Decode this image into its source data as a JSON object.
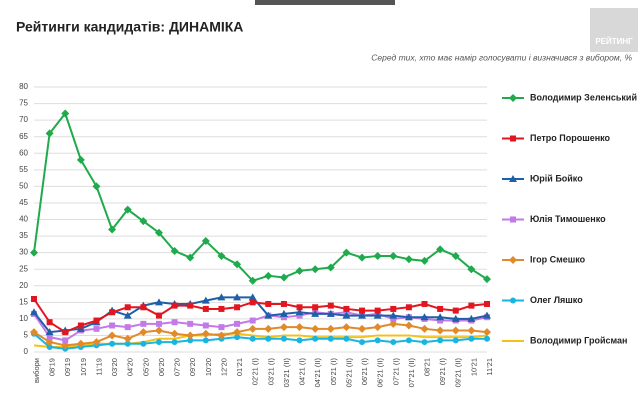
{
  "chart_data": {
    "type": "line",
    "title": "Рейтинги кандидатів: ДИНАМІКА",
    "subtitle": "Серед тих, хто має намір голосувати і визначився з вибором, %",
    "logo": "РЕЙТИНГ",
    "categories": [
      "вибори",
      "08'19",
      "09'19",
      "10'19",
      "11'19",
      "03'20",
      "04'20",
      "05'20",
      "06'20",
      "07'20",
      "09'20",
      "10'20",
      "12'20",
      "01'21",
      "02'21 (I)",
      "03'21 (I)",
      "03'21 (II)",
      "04'21 (I)",
      "04'21 (II)",
      "05'21 (I)",
      "05'21 (II)",
      "06'21 (I)",
      "06'21 (II)",
      "07'21 (I)",
      "07'21 (II)",
      "08'21",
      "09'21 (I)",
      "09'21 (II)",
      "10'21",
      "11'21"
    ],
    "ylim": [
      0,
      80
    ],
    "yticks": [
      0,
      5,
      10,
      15,
      20,
      25,
      30,
      35,
      40,
      45,
      50,
      55,
      60,
      65,
      70,
      75,
      80
    ],
    "grid": true,
    "legend": "right",
    "series": [
      {
        "name": "Володимир Зеленський",
        "color": "#1faa4b",
        "marker": "diamond",
        "values": [
          30,
          66,
          72,
          58,
          50,
          37,
          43,
          39.5,
          36,
          30.5,
          28.5,
          33.5,
          29,
          26.5,
          21.5,
          23,
          22.5,
          24.5,
          25,
          25.5,
          30,
          28.5,
          29,
          29,
          28,
          27.5,
          31,
          29,
          25,
          22
        ]
      },
      {
        "name": "Петро Порошенко",
        "color": "#e3161f",
        "marker": "square",
        "values": [
          16,
          9,
          6,
          8,
          9.5,
          12,
          13.5,
          13.5,
          11,
          14,
          14,
          13,
          13,
          13.5,
          15,
          14.5,
          14.5,
          13.5,
          13.5,
          14,
          13,
          12.5,
          12.5,
          13,
          13.5,
          14.5,
          13,
          12.5,
          14,
          14.5
        ]
      },
      {
        "name": "Юрій Бойко",
        "color": "#1f5fa8",
        "marker": "triangle",
        "values": [
          12,
          6,
          6.5,
          7,
          9,
          12.5,
          11,
          14,
          15,
          14.5,
          14.5,
          15.5,
          16.5,
          16.5,
          16.5,
          11,
          11.5,
          12,
          11.5,
          11.5,
          11,
          11,
          11,
          11,
          10.5,
          10.5,
          10.5,
          10,
          10,
          11
        ]
      },
      {
        "name": "Юлія Тимошенко",
        "color": "#c27ae8",
        "marker": "square",
        "values": [
          11.5,
          4.5,
          3.5,
          6.5,
          7,
          8,
          7.5,
          8.5,
          8.5,
          9,
          8.5,
          8,
          7.5,
          8.5,
          9.5,
          11,
          10.5,
          11,
          12,
          11.5,
          12,
          11,
          11.5,
          10,
          10.5,
          10,
          9.5,
          9.5,
          9.5,
          10.5
        ]
      },
      {
        "name": "Ігор Смешко",
        "color": "#e08a2a",
        "marker": "diamond",
        "values": [
          6,
          3,
          2,
          2.5,
          3,
          5,
          4,
          6,
          6.5,
          5.5,
          5,
          5.5,
          5,
          6,
          7,
          7,
          7.5,
          7.5,
          7,
          7,
          7.5,
          7,
          7.5,
          8.5,
          8,
          7,
          6.5,
          6.5,
          6.5,
          6
        ]
      },
      {
        "name": "Олег Ляшко",
        "color": "#19b5e0",
        "marker": "circle",
        "values": [
          5.5,
          1.5,
          1,
          1.5,
          2,
          2.5,
          2.5,
          2.5,
          3,
          3,
          3.5,
          3.5,
          4,
          4.5,
          4,
          4,
          4,
          3.5,
          4,
          4,
          4,
          3,
          3.5,
          3,
          3.5,
          3,
          3.5,
          3.5,
          4,
          4
        ]
      },
      {
        "name": "Володимир Гройсман",
        "color": "#f2c21b",
        "marker": "none",
        "values": [
          2,
          1.5,
          1.5,
          2,
          2.5,
          2.5,
          2.5,
          3,
          4,
          4,
          5,
          5,
          5.5,
          5.5,
          5,
          4.5,
          5,
          5,
          4.5,
          4.5,
          4.5,
          4.5,
          5,
          5,
          5,
          4.5,
          4.5,
          4.5,
          4.5,
          5
        ]
      }
    ]
  }
}
